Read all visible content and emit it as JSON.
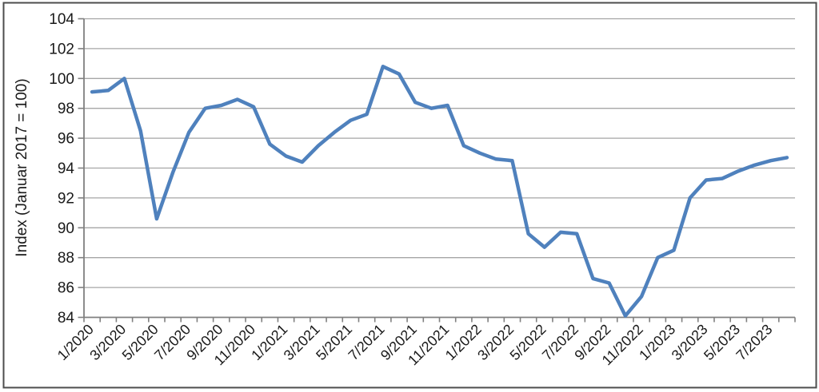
{
  "frame": {
    "border_color": "#4d4d4d",
    "background": "#ffffff"
  },
  "chart_data": {
    "type": "line",
    "title": "",
    "xlabel": "",
    "ylabel": "Index (Januar 2017 = 100)",
    "legend": "none",
    "grid": "horizontal",
    "ylim": [
      84,
      104
    ],
    "ytick_step": 2,
    "xtick_label_every": 2,
    "series_color": "#4F81BD",
    "gridline_color": "#A6A6A6",
    "axis_color": "#808080",
    "label_color": "#1a1a1a",
    "categories": [
      "1/2020",
      "2/2020",
      "3/2020",
      "4/2020",
      "5/2020",
      "6/2020",
      "7/2020",
      "8/2020",
      "9/2020",
      "10/2020",
      "11/2020",
      "12/2020",
      "1/2021",
      "2/2021",
      "3/2021",
      "4/2021",
      "5/2021",
      "6/2021",
      "7/2021",
      "8/2021",
      "9/2021",
      "10/2021",
      "11/2021",
      "12/2021",
      "1/2022",
      "2/2022",
      "3/2022",
      "4/2022",
      "5/2022",
      "6/2022",
      "7/2022",
      "8/2022",
      "9/2022",
      "10/2022",
      "11/2022",
      "12/2022",
      "1/2023",
      "2/2023",
      "3/2023",
      "4/2023",
      "5/2023",
      "6/2023",
      "7/2023",
      "8/2023"
    ],
    "values": [
      99.1,
      99.2,
      100.0,
      96.5,
      90.6,
      93.7,
      96.4,
      98.0,
      98.2,
      98.6,
      98.1,
      95.6,
      94.8,
      94.4,
      95.5,
      96.4,
      97.2,
      97.6,
      100.8,
      100.3,
      98.4,
      98.0,
      98.2,
      95.5,
      95.0,
      94.6,
      94.5,
      89.6,
      88.7,
      89.7,
      89.6,
      86.6,
      86.3,
      84.1,
      85.4,
      88.0,
      88.5,
      92.0,
      93.2,
      93.3,
      93.8,
      94.2,
      94.5,
      94.7
    ]
  }
}
